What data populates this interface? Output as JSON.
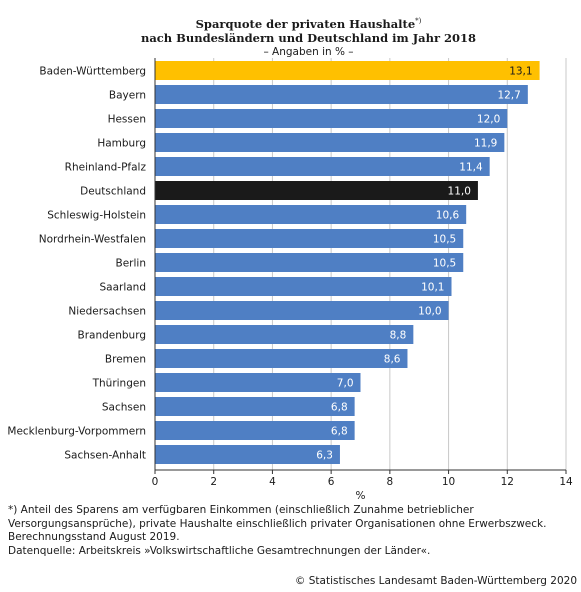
{
  "chart_data": {
    "type": "bar",
    "orientation": "horizontal",
    "title": [
      "Sparquote der privaten Haushalte",
      "nach Bundesländern und Deutschland im Jahr 2018"
    ],
    "title_marker": "*)",
    "subtitle": "– Angaben in % –",
    "xlabel": "%",
    "xlim": [
      0,
      14
    ],
    "xticks": [
      0,
      2,
      4,
      6,
      8,
      10,
      12,
      14
    ],
    "grid": "vertical",
    "categories": [
      "Baden-Württemberg",
      "Bayern",
      "Hessen",
      "Hamburg",
      "Rheinland-Pfalz",
      "Deutschland",
      "Schleswig-Holstein",
      "Nordrhein-Westfalen",
      "Berlin",
      "Saarland",
      "Niedersachsen",
      "Brandenburg",
      "Bremen",
      "Thüringen",
      "Sachsen",
      "Mecklenburg-Vorpommern",
      "Sachsen-Anhalt"
    ],
    "values": [
      13.1,
      12.7,
      12.0,
      11.9,
      11.4,
      11.0,
      10.6,
      10.5,
      10.5,
      10.1,
      10.0,
      8.8,
      8.6,
      7.0,
      6.8,
      6.8,
      6.3
    ],
    "value_labels": [
      "13,1",
      "12,7",
      "12,0",
      "11,9",
      "11,4",
      "11,0",
      "10,6",
      "10,5",
      "10,5",
      "10,1",
      "10,0",
      "8,8",
      "8,6",
      "7,0",
      "6,8",
      "6,8",
      "6,3"
    ],
    "colors": {
      "default": "#4f7fc4",
      "highlight_bw": "#ffc000",
      "highlight_de": "#1a1a1a",
      "label_default": "#ffffff",
      "label_bw": "#1a1a1a"
    }
  },
  "footnote": [
    "*) Anteil des Sparens am verfügbaren Einkommen (einschließlich Zunahme betrieblicher",
    "Versorgungsansprüche), private Haushalte einschließlich privater Organisationen ohne Erwerbszweck.",
    "Berechnungsstand August 2019.",
    "Datenquelle: Arbeitskreis »Volkswirtschaftliche Gesamtrechnungen der Länder«."
  ],
  "copyright": "© Statistisches Landesamt Baden-Württemberg 2020"
}
